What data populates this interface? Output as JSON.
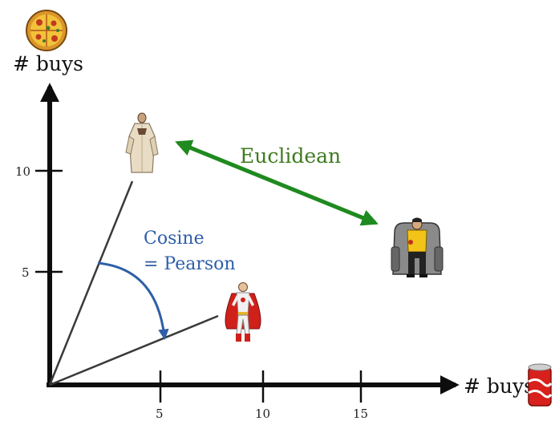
{
  "axes": {
    "y_label": "# buys",
    "x_label": "# buys",
    "y_ticks": [
      "10",
      "5"
    ],
    "x_ticks": [
      "5",
      "10",
      "15"
    ],
    "y_icon": "pizza-icon",
    "x_icon": "soda-can-icon"
  },
  "labels": {
    "euclidean": "Euclidean",
    "cosine_line1": "Cosine",
    "cosine_line2": "= Pearson"
  },
  "figures": [
    "robed-man-figure",
    "superhero-figure",
    "seated-man-figure"
  ],
  "colors": {
    "axis": "#0d0d0d",
    "euclidean": "#1f8a1f",
    "euclidean_text": "#3e7a1e",
    "cosine": "#2e5fa8",
    "cosine_text": "#2e5fa8",
    "vector_line": "#3a3a3a"
  }
}
